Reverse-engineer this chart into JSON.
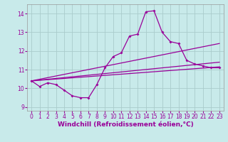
{
  "background_color": "#c8eaea",
  "line_color": "#990099",
  "grid_color": "#aacccc",
  "xlabel": "Windchill (Refroidissement éolien,°C)",
  "xlabel_fontsize": 6.5,
  "tick_fontsize": 5.5,
  "ylim": [
    8.8,
    14.5
  ],
  "xlim": [
    -0.5,
    23.5
  ],
  "yticks": [
    9,
    10,
    11,
    12,
    13,
    14
  ],
  "xticks": [
    0,
    1,
    2,
    3,
    4,
    5,
    6,
    7,
    8,
    9,
    10,
    11,
    12,
    13,
    14,
    15,
    16,
    17,
    18,
    19,
    20,
    21,
    22,
    23
  ],
  "jagged": [
    10.4,
    10.1,
    10.3,
    10.2,
    9.9,
    9.6,
    9.5,
    9.5,
    10.2,
    11.1,
    11.7,
    11.9,
    12.8,
    12.9,
    14.1,
    14.15,
    13.0,
    12.5,
    12.4,
    11.5,
    11.3,
    11.2,
    11.1,
    11.1
  ],
  "line1_start": 10.4,
  "line1_end": 12.4,
  "line2_start": 10.4,
  "line2_end": 11.4,
  "line3_start": 10.4,
  "line3_end": 11.15
}
